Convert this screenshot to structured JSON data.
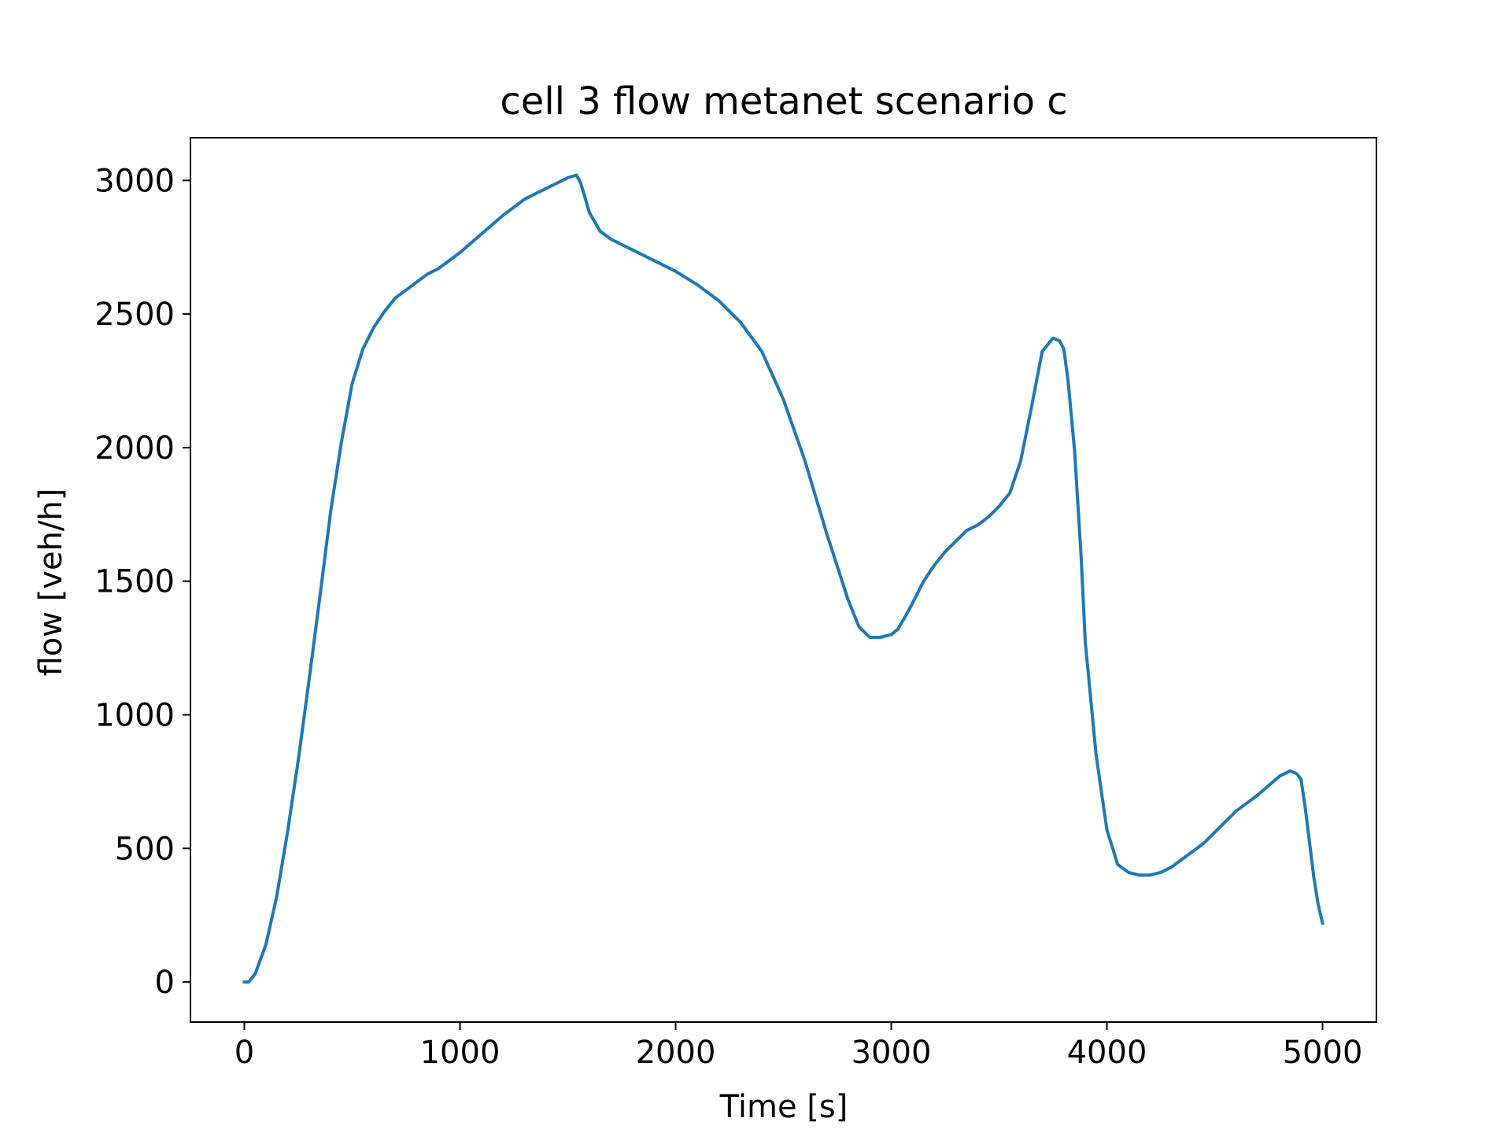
{
  "chart_data": {
    "type": "line",
    "title": "cell 3 flow metanet scenario c",
    "xlabel": "Time [s]",
    "ylabel": "flow [veh/h]",
    "xlim": [
      -250,
      5250
    ],
    "ylim": [
      -150,
      3160
    ],
    "xticks": [
      0,
      1000,
      2000,
      3000,
      4000,
      5000
    ],
    "yticks": [
      0,
      500,
      1000,
      1500,
      2000,
      2500,
      3000
    ],
    "xtick_labels": [
      "0",
      "1000",
      "2000",
      "3000",
      "4000",
      "5000"
    ],
    "ytick_labels": [
      "0",
      "500",
      "1000",
      "1500",
      "2000",
      "2500",
      "3000"
    ],
    "grid": false,
    "legend": "none",
    "series": [
      {
        "color": "#1f77b4",
        "x": [
          0,
          20,
          50,
          100,
          150,
          200,
          250,
          300,
          350,
          400,
          450,
          500,
          550,
          600,
          650,
          700,
          750,
          800,
          850,
          900,
          1000,
          1100,
          1200,
          1300,
          1400,
          1500,
          1540,
          1560,
          1600,
          1650,
          1700,
          1800,
          1900,
          2000,
          2100,
          2200,
          2300,
          2400,
          2500,
          2600,
          2700,
          2800,
          2850,
          2900,
          2950,
          3000,
          3030,
          3060,
          3100,
          3150,
          3200,
          3250,
          3300,
          3350,
          3400,
          3450,
          3500,
          3550,
          3600,
          3650,
          3700,
          3750,
          3780,
          3800,
          3820,
          3850,
          3880,
          3900,
          3950,
          4000,
          4050,
          4100,
          4150,
          4200,
          4250,
          4300,
          4350,
          4400,
          4450,
          4500,
          4600,
          4700,
          4800,
          4850,
          4880,
          4900,
          4920,
          4940,
          4960,
          4980,
          5000
        ],
        "y": [
          0,
          0,
          30,
          140,
          320,
          560,
          830,
          1130,
          1440,
          1760,
          2020,
          2240,
          2370,
          2450,
          2510,
          2560,
          2590,
          2620,
          2650,
          2670,
          2730,
          2800,
          2870,
          2930,
          2970,
          3010,
          3020,
          2990,
          2880,
          2810,
          2780,
          2740,
          2700,
          2660,
          2610,
          2550,
          2470,
          2360,
          2180,
          1950,
          1680,
          1430,
          1330,
          1290,
          1290,
          1300,
          1320,
          1360,
          1420,
          1500,
          1560,
          1610,
          1650,
          1690,
          1710,
          1740,
          1780,
          1830,
          1950,
          2150,
          2360,
          2410,
          2400,
          2370,
          2250,
          1990,
          1600,
          1270,
          850,
          570,
          440,
          410,
          400,
          400,
          410,
          430,
          460,
          490,
          520,
          560,
          640,
          700,
          770,
          790,
          780,
          760,
          650,
          520,
          390,
          290,
          220
        ]
      }
    ]
  }
}
